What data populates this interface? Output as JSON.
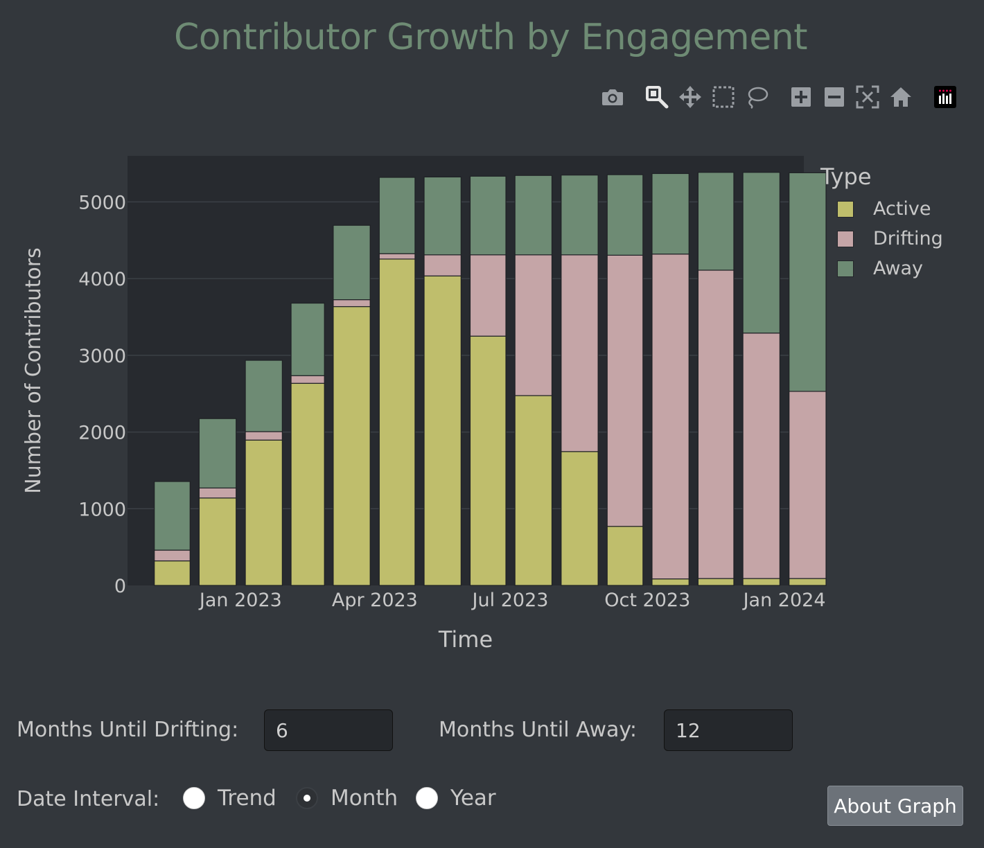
{
  "title": "Contributor Growth by Engagement",
  "modebar": {
    "buttons": [
      {
        "name": "camera-icon",
        "active": false
      },
      {
        "name": "zoom-icon",
        "active": true
      },
      {
        "name": "pan-icon",
        "active": false
      },
      {
        "name": "box-select-icon",
        "active": false
      },
      {
        "name": "lasso-select-icon",
        "active": false
      },
      {
        "name": "zoom-in-icon",
        "active": false
      },
      {
        "name": "zoom-out-icon",
        "active": false
      },
      {
        "name": "autoscale-icon",
        "active": false
      },
      {
        "name": "reset-axes-icon",
        "active": false
      },
      {
        "name": "plotly-logo-icon",
        "active": false
      }
    ]
  },
  "chart_data": {
    "type": "bar",
    "barmode": "stack",
    "xlabel": "Time",
    "ylabel": "Number of Contributors",
    "ylim": [
      0,
      5600
    ],
    "yticks": [
      0,
      1000,
      2000,
      3000,
      4000,
      5000
    ],
    "x_tick_labels": [
      "Jan 2023",
      "Apr 2023",
      "Jul 2023",
      "Oct 2023",
      "Jan 2024"
    ],
    "x_tick_months": [
      "2023-01",
      "2023-04",
      "2023-07",
      "2023-10",
      "2024-01"
    ],
    "x_range": [
      "2022-10-17",
      "2024-01-14"
    ],
    "categories": [
      "2022-11",
      "2022-12",
      "2023-01",
      "2023-02",
      "2023-03",
      "2023-04",
      "2023-05",
      "2023-06",
      "2023-07",
      "2023-08",
      "2023-09",
      "2023-10",
      "2023-11",
      "2023-12",
      "2024-01"
    ],
    "grid": true,
    "legend_title": "Type",
    "legend_position": "top-right",
    "series": [
      {
        "name": "Active",
        "color": "#bfbe6c",
        "values": [
          320,
          1140,
          1895,
          2635,
          3635,
          4255,
          4035,
          3250,
          2475,
          1745,
          770,
          85,
          90,
          90,
          90
        ]
      },
      {
        "name": "Drifting",
        "color": "#c5a5a7",
        "values": [
          140,
          130,
          110,
          100,
          90,
          70,
          275,
          1060,
          1835,
          2565,
          3535,
          4235,
          4020,
          3200,
          2440
        ]
      },
      {
        "name": "Away",
        "color": "#6e8b74",
        "values": [
          895,
          905,
          930,
          945,
          970,
          995,
          1015,
          1025,
          1035,
          1040,
          1050,
          1050,
          1275,
          2095,
          2850
        ]
      }
    ]
  },
  "legend": {
    "title": "Type",
    "items": [
      {
        "label": "Active",
        "color": "#bfbe6c"
      },
      {
        "label": "Drifting",
        "color": "#c5a5a7"
      },
      {
        "label": "Away",
        "color": "#6e8b74"
      }
    ]
  },
  "controls": {
    "drifting_label": "Months Until Drifting:",
    "drifting_value": "6",
    "away_label": "Months Until Away:",
    "away_value": "12",
    "interval_label": "Date Interval:",
    "intervals": [
      {
        "label": "Trend",
        "selected": false
      },
      {
        "label": "Month",
        "selected": true
      },
      {
        "label": "Year",
        "selected": false
      }
    ],
    "about_button": "About Graph"
  }
}
